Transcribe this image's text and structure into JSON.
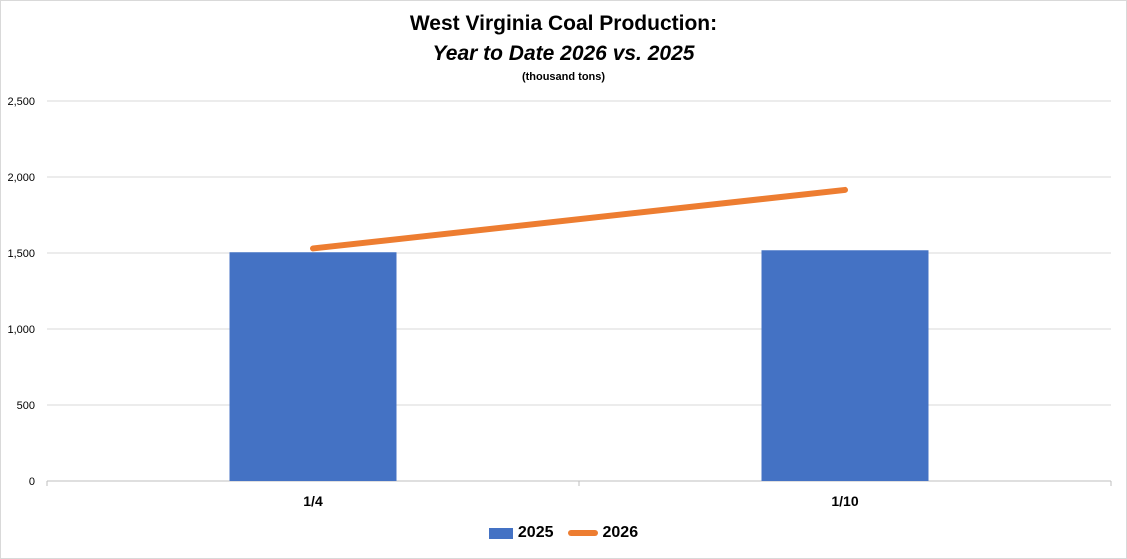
{
  "chart_data": {
    "type": "bar",
    "title": "West Virginia Coal Production:",
    "subtitle": "Year to Date 2026 vs. 2025",
    "units": "(thousand tons)",
    "categories": [
      "1/4",
      "1/10"
    ],
    "series": [
      {
        "name": "2025",
        "kind": "bar",
        "color": "#4472c4",
        "values": [
          1505,
          1518
        ]
      },
      {
        "name": "2026",
        "kind": "line",
        "color": "#ed7d31",
        "values": [
          1530,
          1915
        ]
      }
    ],
    "ylim": [
      0,
      2500
    ],
    "yticks": [
      0,
      500,
      1000,
      1500,
      2000,
      2500
    ],
    "ytick_labels": [
      "0",
      "500",
      "1,000",
      "1,500",
      "2,000",
      "2,500"
    ],
    "grid": true,
    "legend": "bottom-center"
  }
}
